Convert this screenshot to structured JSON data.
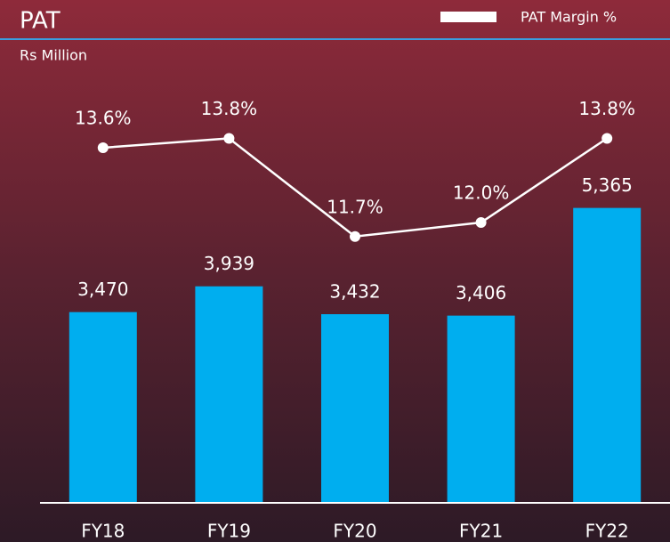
{
  "chart_data": {
    "type": "bar+line",
    "title": "PAT",
    "subtitle": "Rs Million",
    "categories": [
      "FY18",
      "FY19",
      "FY20",
      "FY21",
      "FY22"
    ],
    "series": [
      {
        "name": "PAT",
        "type": "bar",
        "color": "#00aeef",
        "values": [
          3470,
          3939,
          3432,
          3406,
          5365
        ],
        "value_labels": [
          "3,470",
          "3,939",
          "3,432",
          "3,406",
          "5,365"
        ]
      },
      {
        "name": "PAT Margin %",
        "type": "line",
        "axis": "y2",
        "color": "#ffffff",
        "values": [
          13.6,
          13.8,
          11.7,
          12.0,
          13.8
        ],
        "value_labels": [
          "13.6%",
          "13.8%",
          "11.7%",
          "12.0%",
          "13.8%"
        ]
      }
    ],
    "ylim": [
      0,
      8500
    ],
    "y2lim": [
      6,
      16
    ],
    "legend": "top-right"
  }
}
